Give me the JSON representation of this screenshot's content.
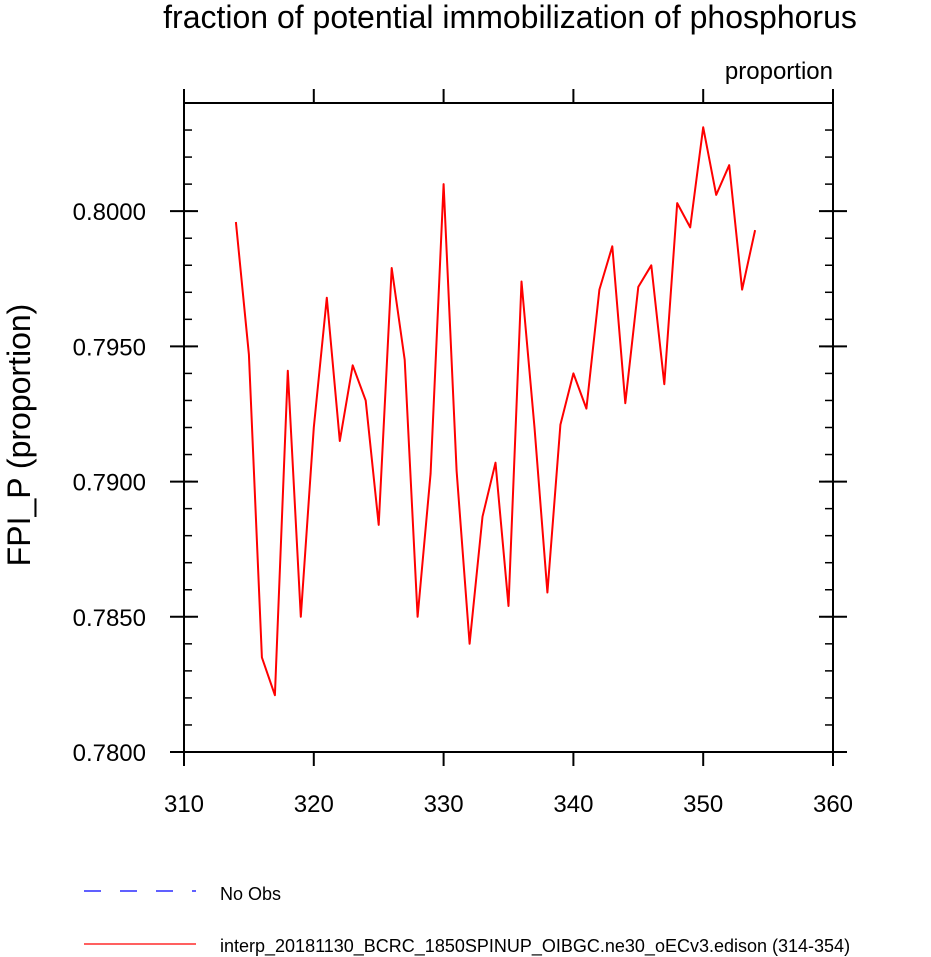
{
  "chart_data": {
    "type": "line",
    "title": "fraction of potential immobilization of phosphorus",
    "units_label": "proportion",
    "ylabel": "FPI_P  (proportion)",
    "xlabel": "",
    "xlim": [
      310,
      360
    ],
    "ylim": [
      0.78,
      0.804
    ],
    "x_ticks": [
      310,
      320,
      330,
      340,
      350,
      360
    ],
    "x_tick_labels": [
      "310",
      "320",
      "330",
      "340",
      "350",
      "360"
    ],
    "y_ticks": [
      0.78,
      0.785,
      0.79,
      0.795,
      0.8
    ],
    "y_tick_labels": [
      "0.7800",
      "0.7850",
      "0.7900",
      "0.7950",
      "0.8000"
    ],
    "grid": false,
    "legend_position": "bottom-left",
    "series": [
      {
        "name": "interp_20181130_BCRC_1850SPINUP_OIBGC.ne30_oECv3.edison (314-354)",
        "color": "#ff0000",
        "style": "solid",
        "x": [
          314,
          315,
          316,
          317,
          318,
          319,
          320,
          321,
          322,
          323,
          324,
          325,
          326,
          327,
          328,
          329,
          330,
          331,
          332,
          333,
          334,
          335,
          336,
          337,
          338,
          339,
          340,
          341,
          342,
          343,
          344,
          345,
          346,
          347,
          348,
          349,
          350,
          351,
          352,
          353,
          354
        ],
        "values": [
          0.7996,
          0.7947,
          0.7835,
          0.7821,
          0.7941,
          0.785,
          0.792,
          0.7968,
          0.7915,
          0.7943,
          0.793,
          0.7884,
          0.7979,
          0.7945,
          0.785,
          0.7903,
          0.801,
          0.7904,
          0.784,
          0.7887,
          0.7907,
          0.7854,
          0.7974,
          0.792,
          0.7859,
          0.7921,
          0.794,
          0.7927,
          0.7971,
          0.7987,
          0.7929,
          0.7972,
          0.798,
          0.7936,
          0.8003,
          0.7994,
          0.8031,
          0.8006,
          0.8017,
          0.7971,
          0.7993
        ]
      },
      {
        "name": "No Obs",
        "color": "#0000ff",
        "style": "dashed",
        "x": [],
        "values": []
      }
    ]
  }
}
